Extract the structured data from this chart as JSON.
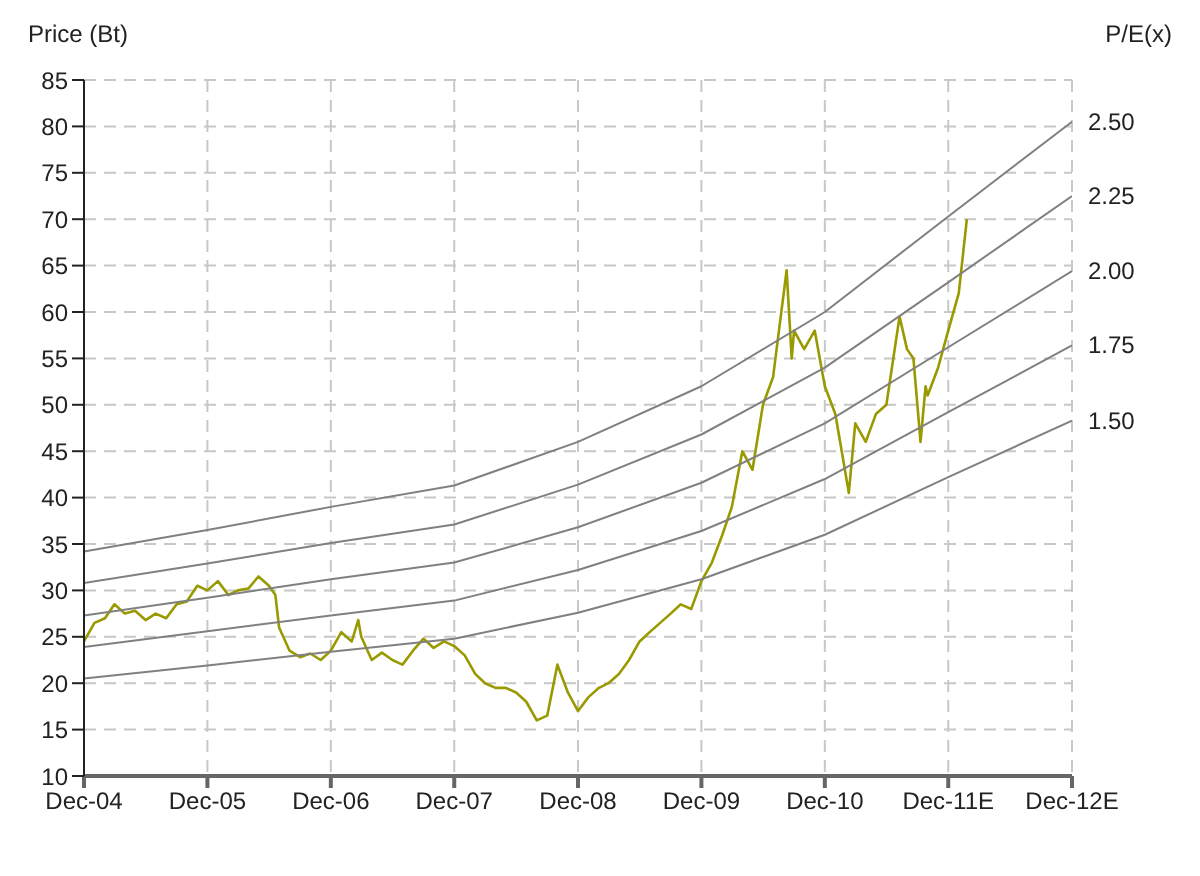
{
  "chart_data": {
    "type": "line",
    "ylabel": "Price (Bt)",
    "annotations": [
      "P/E(x)"
    ],
    "xlim": [
      "2004-12-01",
      "2012-12-01"
    ],
    "xticks": [
      {
        "value": "2004-12-01",
        "label": "Dec-04"
      },
      {
        "value": "2005-12-01",
        "label": "Dec-05"
      },
      {
        "value": "2006-12-01",
        "label": "Dec-06"
      },
      {
        "value": "2007-12-01",
        "label": "Dec-07"
      },
      {
        "value": "2008-12-01",
        "label": "Dec-08"
      },
      {
        "value": "2009-12-01",
        "label": "Dec-09"
      },
      {
        "value": "2010-12-01",
        "label": "Dec-10"
      },
      {
        "value": "2011-12-01",
        "label": "Dec-11E"
      },
      {
        "value": "2012-12-01",
        "label": "Dec-12E"
      }
    ],
    "ylim": [
      10,
      85
    ],
    "yticks": [
      10,
      15,
      20,
      25,
      30,
      35,
      40,
      45,
      50,
      55,
      60,
      65,
      70,
      75,
      80,
      85
    ],
    "grid": true,
    "legend": false,
    "marker": "none",
    "line_style": "solid",
    "series": [
      {
        "color": "#999900",
        "x": [
          "2004-12-01",
          "2005-01-01",
          "2005-02-01",
          "2005-03-01",
          "2005-04-01",
          "2005-05-01",
          "2005-06-01",
          "2005-07-01",
          "2005-08-01",
          "2005-09-01",
          "2005-10-01",
          "2005-11-01",
          "2005-12-01",
          "2006-01-01",
          "2006-02-01",
          "2006-03-01",
          "2006-04-01",
          "2006-05-01",
          "2006-06-01",
          "2006-06-20",
          "2006-07-01",
          "2006-08-01",
          "2006-09-01",
          "2006-10-01",
          "2006-11-01",
          "2006-12-01",
          "2007-01-01",
          "2007-02-01",
          "2007-02-20",
          "2007-03-01",
          "2007-04-01",
          "2007-05-01",
          "2007-06-01",
          "2007-07-01",
          "2007-08-01",
          "2007-09-01",
          "2007-10-01",
          "2007-11-01",
          "2007-12-01",
          "2008-01-01",
          "2008-02-01",
          "2008-03-01",
          "2008-04-01",
          "2008-05-01",
          "2008-06-01",
          "2008-07-01",
          "2008-08-01",
          "2008-09-01",
          "2008-10-01",
          "2008-11-01",
          "2008-12-01",
          "2009-01-01",
          "2009-02-01",
          "2009-03-01",
          "2009-04-01",
          "2009-05-01",
          "2009-06-01",
          "2009-07-01",
          "2009-08-01",
          "2009-09-01",
          "2009-10-01",
          "2009-11-01",
          "2009-12-01",
          "2010-01-01",
          "2010-02-01",
          "2010-03-01",
          "2010-04-01",
          "2010-05-01",
          "2010-06-01",
          "2010-07-01",
          "2010-08-10",
          "2010-08-25",
          "2010-09-01",
          "2010-10-01",
          "2010-11-01",
          "2010-12-01",
          "2011-01-01",
          "2011-01-20",
          "2011-02-10",
          "2011-03-01",
          "2011-04-01",
          "2011-05-01",
          "2011-06-01",
          "2011-07-10",
          "2011-08-01",
          "2011-08-20",
          "2011-09-10",
          "2011-09-25",
          "2011-10-01",
          "2011-11-01",
          "2011-12-01",
          "2012-01-01",
          "2012-01-25"
        ],
        "values": [
          24.5,
          26.5,
          27,
          28.5,
          27.5,
          27.8,
          26.8,
          27.5,
          27,
          28.5,
          28.8,
          30.5,
          30,
          31,
          29.5,
          30,
          30.2,
          31.5,
          30.5,
          29.5,
          26,
          23.5,
          22.8,
          23.2,
          22.5,
          23.5,
          25.5,
          24.5,
          26.8,
          25,
          22.5,
          23.3,
          22.5,
          22,
          23.5,
          24.8,
          23.8,
          24.5,
          24,
          23,
          21,
          20,
          19.5,
          19.5,
          19,
          18,
          16,
          16.5,
          22,
          19,
          17,
          18.5,
          19.5,
          20,
          21,
          22.5,
          24.5,
          25.5,
          26.5,
          27.5,
          28.5,
          28,
          31,
          33,
          36,
          39,
          45,
          43,
          50,
          53,
          64.5,
          55,
          58,
          56,
          58,
          52,
          49,
          45,
          40.5,
          48,
          46,
          49,
          50,
          59.5,
          56,
          55,
          46,
          52,
          51,
          54,
          58,
          62,
          70
        ]
      },
      {
        "name": "2.50",
        "color": "#808080",
        "x": [
          "2004-12-01",
          "2005-12-01",
          "2006-12-01",
          "2007-12-01",
          "2008-12-01",
          "2009-12-01",
          "2010-12-01",
          "2011-12-01",
          "2012-12-01"
        ],
        "values": [
          34.2,
          36.5,
          39,
          41.3,
          46,
          52,
          60,
          70.3,
          80.5
        ]
      },
      {
        "name": "2.25",
        "color": "#808080",
        "x": [
          "2004-12-01",
          "2005-12-01",
          "2006-12-01",
          "2007-12-01",
          "2008-12-01",
          "2009-12-01",
          "2010-12-01",
          "2011-12-01",
          "2012-12-01"
        ],
        "values": [
          30.8,
          32.9,
          35.1,
          37.1,
          41.4,
          46.8,
          54,
          63.2,
          72.5
        ]
      },
      {
        "name": "2.00",
        "color": "#808080",
        "x": [
          "2004-12-01",
          "2005-12-01",
          "2006-12-01",
          "2007-12-01",
          "2008-12-01",
          "2009-12-01",
          "2010-12-01",
          "2011-12-01",
          "2012-12-01"
        ],
        "values": [
          27.3,
          29.2,
          31.2,
          33,
          36.8,
          41.6,
          48,
          56.2,
          64.4
        ]
      },
      {
        "name": "1.75",
        "color": "#808080",
        "x": [
          "2004-12-01",
          "2005-12-01",
          "2006-12-01",
          "2007-12-01",
          "2008-12-01",
          "2009-12-01",
          "2010-12-01",
          "2011-12-01",
          "2012-12-01"
        ],
        "values": [
          23.9,
          25.6,
          27.3,
          28.9,
          32.2,
          36.4,
          42,
          49.2,
          56.4
        ]
      },
      {
        "name": "1.50",
        "color": "#808080",
        "x": [
          "2004-12-01",
          "2005-12-01",
          "2006-12-01",
          "2007-12-01",
          "2008-12-01",
          "2009-12-01",
          "2010-12-01",
          "2011-12-01",
          "2012-12-01"
        ],
        "values": [
          20.5,
          21.9,
          23.4,
          24.8,
          27.6,
          31.2,
          36,
          42.2,
          48.3
        ]
      }
    ]
  }
}
